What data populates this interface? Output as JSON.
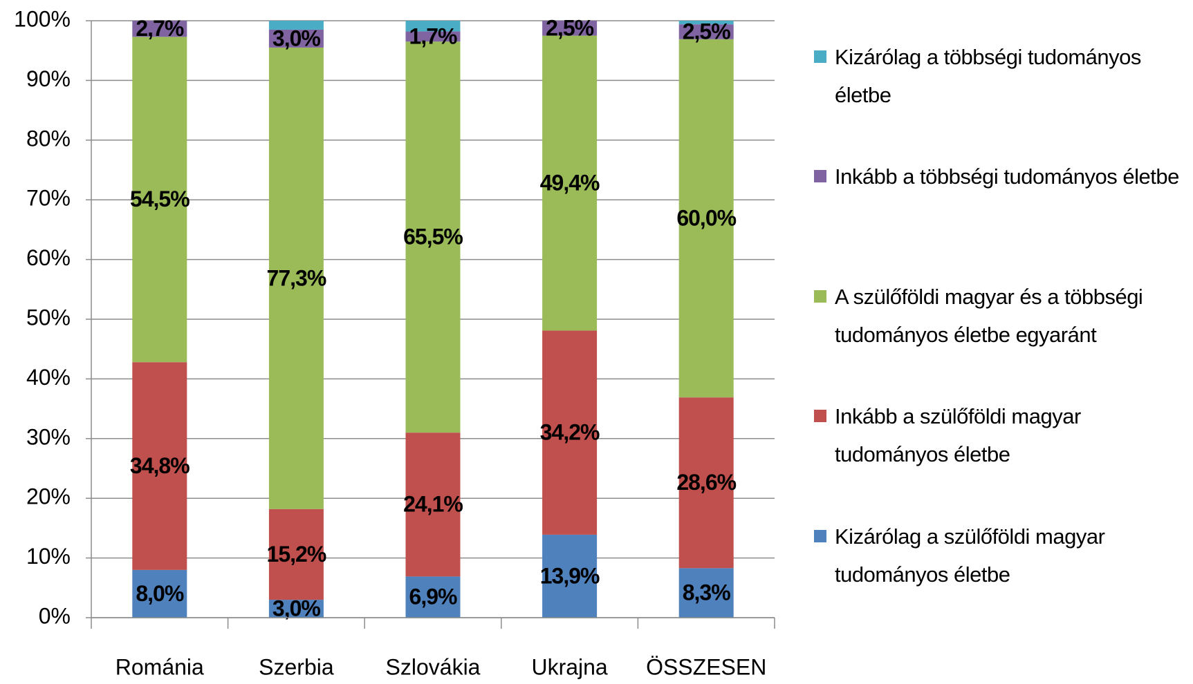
{
  "chart_data": {
    "type": "stacked_bar",
    "categories": [
      "Románia",
      "Szerbia",
      "Szlovákia",
      "Ukrajna",
      "ÖSSZESEN"
    ],
    "series": [
      {
        "name": "Kizárólag a szülőföldi magyar tudományos életbe",
        "color": "#4f81bd",
        "values": [
          8.0,
          3.0,
          6.9,
          13.9,
          8.3
        ],
        "value_labels": [
          "8,0%",
          "3,0%",
          "6,9%",
          "13,9%",
          "8,3%"
        ]
      },
      {
        "name": "Inkább a szülőföldi magyar tudományos életbe",
        "color": "#c0504d",
        "values": [
          34.8,
          15.2,
          24.1,
          34.2,
          28.6
        ],
        "value_labels": [
          "34,8%",
          "15,2%",
          "24,1%",
          "34,2%",
          "28,6%"
        ]
      },
      {
        "name": "A szülőföldi magyar és a többségi tudományos életbe egyaránt",
        "color": "#9bbb59",
        "values": [
          54.5,
          77.3,
          65.5,
          49.4,
          60.0
        ],
        "value_labels": [
          "54,5%",
          "77,3%",
          "65,5%",
          "49,4%",
          "60,0%"
        ]
      },
      {
        "name": "Inkább a többségi tudományos életbe",
        "color": "#8064a2",
        "values": [
          2.7,
          3.0,
          1.7,
          2.5,
          2.5
        ],
        "value_labels": [
          "2,7%",
          "3,0%",
          "1,7%",
          "2,5%",
          "2,5%"
        ]
      },
      {
        "name": "Kizárólag a többségi tudományos életbe",
        "color": "#4bacc6",
        "values": [
          0,
          1.5,
          1.8,
          0,
          0.6
        ]
      }
    ],
    "ylim": [
      0,
      100
    ],
    "yticks": [
      {
        "value": 0,
        "label": "0%"
      },
      {
        "value": 10,
        "label": "10%"
      },
      {
        "value": 20,
        "label": "20%"
      },
      {
        "value": 30,
        "label": "30%"
      },
      {
        "value": 40,
        "label": "40%"
      },
      {
        "value": 50,
        "label": "50%"
      },
      {
        "value": 60,
        "label": "60%"
      },
      {
        "value": 70,
        "label": "70%"
      },
      {
        "value": 80,
        "label": "80%"
      },
      {
        "value": 90,
        "label": "90%"
      },
      {
        "value": 100,
        "label": "100%"
      }
    ],
    "grid": true,
    "legend": "right"
  }
}
